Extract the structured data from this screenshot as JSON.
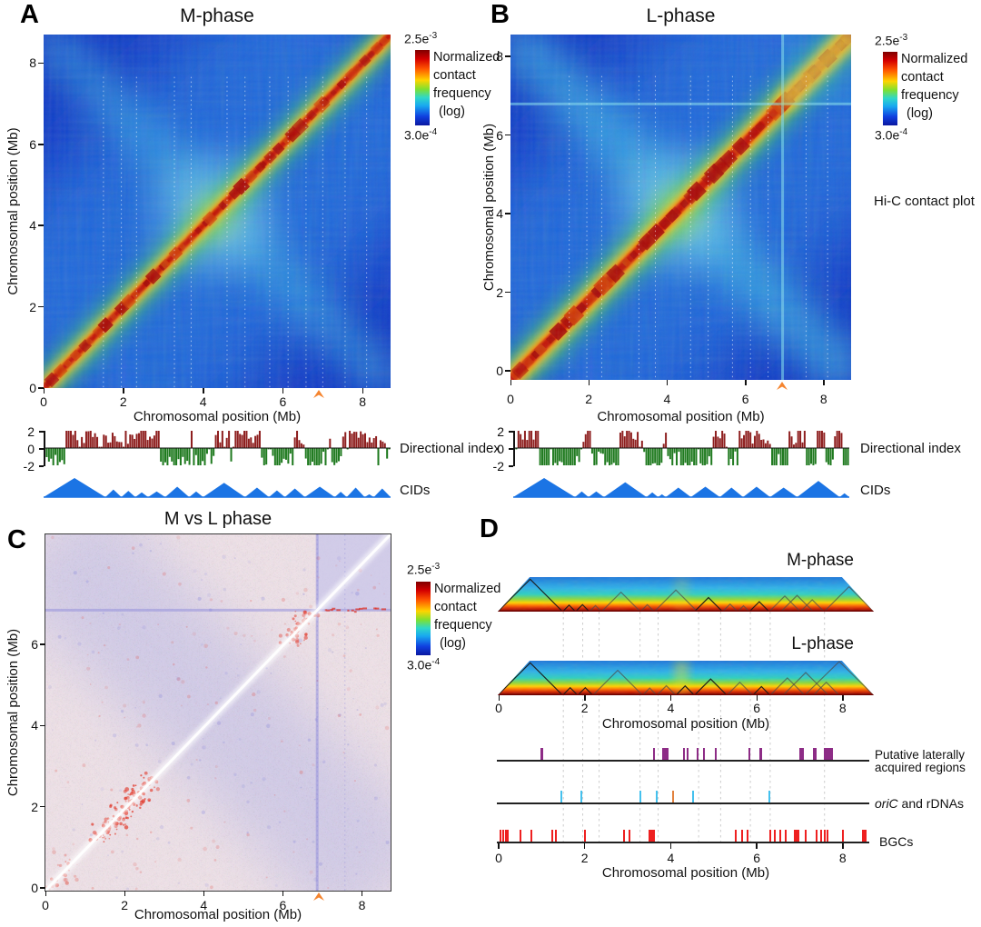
{
  "panels": {
    "A": {
      "letter": "A",
      "title": "M-phase"
    },
    "B": {
      "letter": "B",
      "title": "L-phase"
    },
    "C": {
      "letter": "C",
      "title": "M vs L phase"
    },
    "D": {
      "letter": "D",
      "m_label": "M-phase",
      "l_label": "L-phase"
    }
  },
  "axis": {
    "xlabel": "Chromosomal position (Mb)",
    "ylabel": "Chromosomal position (Mb)"
  },
  "colorbar": {
    "max_mant": "2.5e",
    "max_exp": "-3",
    "min_mant": "3.0e",
    "min_exp": "-4",
    "lines": [
      "Normalized",
      "contact",
      "frequency",
      "(log)"
    ]
  },
  "labels": {
    "hic": "Hi-C contact plot",
    "di": "Directional index",
    "cids": "CIDs",
    "lat1": "Putative laterally",
    "lat2": "acquired regions",
    "oric": "oriC",
    "oric_rest": " and rDNAs",
    "bgcs": "BGCs"
  },
  "chart_data": [
    {
      "id": "A",
      "type": "heatmap",
      "title": "M-phase",
      "xlabel": "Chromosomal position (Mb)",
      "ylabel": "Chromosomal position (Mb)",
      "xlim": [
        0,
        8.7
      ],
      "ylim": [
        0,
        8.7
      ],
      "xticks": [
        0,
        2,
        4,
        6,
        8
      ],
      "yticks": [
        0,
        2,
        4,
        6,
        8
      ],
      "colorscale": {
        "min": 0.0003,
        "max": 0.0025,
        "scale": "log",
        "palette": "jet",
        "label": "Normalized contact frequency (log)"
      },
      "arrow_mb": 6.9,
      "gridlines_mb": [
        1.5,
        1.95,
        2.33,
        3.28,
        3.7,
        4.6,
        5.05,
        5.67,
        6.13,
        6.58,
        7.0,
        7.56,
        8.1
      ],
      "description": "Strong red primary diagonal with CID blocks; faint cyan anti-diagonal X crossing near 4.3 Mb"
    },
    {
      "id": "A_di",
      "type": "bar",
      "label": "Directional index",
      "ylim": [
        -2,
        2
      ],
      "yticks": [
        "2",
        "0",
        "-2"
      ],
      "n_bars": 158,
      "seed": 7,
      "up_color": "#8e1f1f",
      "down_color": "#1f7a1f",
      "pattern": "dense alternating positive/negative directionality runs, clipped at ±2"
    },
    {
      "id": "A_cids",
      "type": "area",
      "label": "CIDs",
      "color": "#1b74e4",
      "triangles_mb": [
        [
          0,
          1.55,
          1
        ],
        [
          1.55,
          1.95,
          0.4
        ],
        [
          1.95,
          2.3,
          0.33
        ],
        [
          2.3,
          2.62,
          0.25
        ],
        [
          2.62,
          3.05,
          0.3
        ],
        [
          3.05,
          3.65,
          0.55
        ],
        [
          3.65,
          4.0,
          0.3
        ],
        [
          4.0,
          5.05,
          0.75
        ],
        [
          5.05,
          5.65,
          0.5
        ],
        [
          5.65,
          6.05,
          0.35
        ],
        [
          6.05,
          6.55,
          0.45
        ],
        [
          6.55,
          7.3,
          0.55
        ],
        [
          7.3,
          7.6,
          0.28
        ],
        [
          7.6,
          8.05,
          0.5
        ],
        [
          8.05,
          8.28,
          0.15
        ],
        [
          8.28,
          8.7,
          0.45
        ]
      ]
    },
    {
      "id": "B",
      "type": "heatmap",
      "title": "L-phase",
      "xlabel": "Chromosomal position (Mb)",
      "ylabel": "Chromosomal position (Mb)",
      "xlim": [
        0,
        8.7
      ],
      "ylim": [
        0,
        8.7
      ],
      "xticks": [
        0,
        2,
        4,
        6,
        8
      ],
      "yticks": [
        0,
        2,
        4,
        6,
        8
      ],
      "colorscale": {
        "min": 0.0003,
        "max": 0.0025,
        "scale": "log",
        "palette": "jet",
        "label": "Normalized contact frequency (log)"
      },
      "arrow_mb": 6.93,
      "gridlines_mb": [
        1.5,
        1.95,
        2.33,
        3.28,
        3.7,
        4.6,
        5.05,
        5.67,
        6.13,
        6.58,
        7.55,
        8.1
      ],
      "corner_block_mb": 6.95,
      "description": "Wider red diagonal than M-phase, stronger anti-diagonal X; distinct cyan boundary and brighter block beyond ~6.95 Mb"
    },
    {
      "id": "B_di",
      "type": "bar",
      "label": "Directional index",
      "ylim": [
        -2,
        2
      ],
      "yticks": [
        "2",
        "0",
        "-2"
      ],
      "n_bars": 155,
      "seed": 13,
      "up_color": "#8e1f1f",
      "down_color": "#1f7a1f",
      "pattern": "dense alternating positive/negative directionality runs, clipped at ±2"
    },
    {
      "id": "B_cids",
      "type": "area",
      "label": "CIDs",
      "color": "#1b74e4",
      "triangles_mb": [
        [
          0,
          1.6,
          1
        ],
        [
          1.6,
          1.95,
          0.3
        ],
        [
          1.95,
          2.35,
          0.3
        ],
        [
          2.35,
          3.45,
          0.78
        ],
        [
          3.45,
          3.75,
          0.25
        ],
        [
          3.75,
          3.95,
          0.15
        ],
        [
          3.95,
          4.6,
          0.5
        ],
        [
          4.6,
          5.35,
          0.55
        ],
        [
          5.35,
          5.95,
          0.5
        ],
        [
          5.95,
          6.65,
          0.55
        ],
        [
          6.65,
          7.35,
          0.5
        ],
        [
          7.35,
          8.45,
          0.85
        ],
        [
          8.45,
          8.7,
          0.2
        ]
      ]
    },
    {
      "id": "C",
      "type": "heatmap",
      "title": "M vs L phase",
      "xlabel": "Chromosomal position (Mb)",
      "ylabel": "Chromosomal position (Mb)",
      "xlim": [
        0,
        8.7
      ],
      "ylim": [
        0,
        8.7
      ],
      "xticks": [
        0,
        2,
        4,
        6,
        8
      ],
      "yticks": [
        0,
        2,
        4,
        6
      ],
      "colorscale": {
        "min": 0.0003,
        "max": 0.0025,
        "scale": "log",
        "palette": "jet",
        "label": "Normalized contact frequency (log)"
      },
      "arrow_mb": 6.9,
      "gridlines_mb": [
        6.85,
        7.55
      ],
      "description": "Differential map: pale red/blue mottle, white diagonal, red speckle clusters near diagonal at 1.4-2.6 Mb and 6.2-6.6 Mb, bluish block beyond ~6.85 Mb"
    },
    {
      "id": "D_m",
      "type": "triangle-heatmap",
      "title": "M-phase",
      "xlim": [
        0,
        8.7
      ],
      "cid_outlines_mb": [
        [
          0,
          1.5,
          "dark"
        ],
        [
          1.5,
          1.8,
          "dark"
        ],
        [
          1.8,
          2.12,
          "dark"
        ],
        [
          2.12,
          2.4,
          "gray"
        ],
        [
          2.4,
          3.3,
          "gray"
        ],
        [
          3.3,
          3.62,
          "gray"
        ],
        [
          3.62,
          4.62,
          "gray"
        ],
        [
          4.55,
          5.2,
          "dark"
        ],
        [
          5.2,
          5.55,
          "gray"
        ],
        [
          5.55,
          5.82,
          "gray"
        ],
        [
          5.82,
          6.28,
          "dark"
        ],
        [
          6.28,
          7.0,
          "gray"
        ],
        [
          6.55,
          7.3,
          "gray"
        ],
        [
          7.0,
          7.55,
          "gray"
        ],
        [
          7.55,
          8.7,
          "gray"
        ]
      ],
      "plume_mb": 4.25,
      "plume_strength": 0.2
    },
    {
      "id": "D_l",
      "type": "triangle-heatmap",
      "title": "L-phase",
      "xlim": [
        0,
        8.7
      ],
      "cid_outlines_mb": [
        [
          0,
          1.5,
          "dark"
        ],
        [
          1.5,
          1.85,
          "dark"
        ],
        [
          1.85,
          2.2,
          "dark"
        ],
        [
          2.2,
          3.35,
          "gray"
        ],
        [
          3.35,
          3.68,
          "gray"
        ],
        [
          3.68,
          4.12,
          "gray"
        ],
        [
          4.12,
          4.55,
          "dark"
        ],
        [
          4.55,
          5.3,
          "dark"
        ],
        [
          5.3,
          5.9,
          "gray"
        ],
        [
          5.9,
          6.3,
          "dark"
        ],
        [
          6.3,
          7.1,
          "gray"
        ],
        [
          6.6,
          7.65,
          "gray"
        ],
        [
          7.1,
          8.7,
          "gray"
        ],
        [
          7.3,
          7.9,
          "gray"
        ]
      ],
      "plume_mb": 4.25,
      "plume_strength": 0.42
    },
    {
      "id": "D_tracks",
      "type": "annotation-tracks",
      "xlabel": "Chromosomal position (Mb)",
      "xticks": [
        0,
        2,
        4,
        6,
        8
      ],
      "xlim": [
        0,
        8.7
      ],
      "gridlines_mb": [
        1.5,
        1.95,
        2.33,
        3.28,
        3.7,
        4.64,
        5.15,
        5.84,
        6.3,
        7.56
      ],
      "tracks": [
        {
          "label": "Putative laterally acquired regions",
          "color": "#8d2c86",
          "marks_mb": [
            [
              1.0,
              0.05
            ],
            [
              3.61,
              0.05
            ],
            [
              3.88,
              0.14
            ],
            [
              4.31,
              0.05
            ],
            [
              4.39,
              0.05
            ],
            [
              4.63,
              0.05
            ],
            [
              4.77,
              0.05
            ],
            [
              5.05,
              0.05
            ],
            [
              5.83,
              0.06
            ],
            [
              6.1,
              0.06
            ],
            [
              7.05,
              0.1
            ],
            [
              7.35,
              0.07
            ],
            [
              7.67,
              0.22
            ]
          ]
        },
        {
          "label": "oriC and rDNAs",
          "rdna_color": "#45c1ee",
          "oric_color": "#e2823f",
          "rdna_mb": [
            [
              1.46,
              0.045
            ],
            [
              1.92,
              0.045
            ],
            [
              3.29,
              0.045
            ],
            [
              3.67,
              0.045
            ],
            [
              4.52,
              0.045
            ],
            [
              6.29,
              0.045
            ]
          ],
          "oric_mb": [
            [
              4.06,
              0.05
            ]
          ]
        },
        {
          "label": "BGCs",
          "color": "#ee2020",
          "marks_mb": [
            [
              0.05,
              0.04
            ],
            [
              0.1,
              0.04
            ],
            [
              0.16,
              0.04
            ],
            [
              0.22,
              0.04
            ],
            [
              0.5,
              0.04
            ],
            [
              0.77,
              0.04
            ],
            [
              1.25,
              0.04
            ],
            [
              1.33,
              0.04
            ],
            [
              2.0,
              0.04
            ],
            [
              2.91,
              0.04
            ],
            [
              3.04,
              0.04
            ],
            [
              3.56,
              0.14
            ],
            [
              5.51,
              0.04
            ],
            [
              5.66,
              0.04
            ],
            [
              5.79,
              0.04
            ],
            [
              6.31,
              0.04
            ],
            [
              6.42,
              0.04
            ],
            [
              6.55,
              0.04
            ],
            [
              6.67,
              0.04
            ],
            [
              6.93,
              0.12
            ],
            [
              7.14,
              0.04
            ],
            [
              7.39,
              0.04
            ],
            [
              7.5,
              0.04
            ],
            [
              7.58,
              0.04
            ],
            [
              7.65,
              0.04
            ],
            [
              8.0,
              0.04
            ],
            [
              8.5,
              0.12
            ]
          ]
        }
      ]
    }
  ]
}
